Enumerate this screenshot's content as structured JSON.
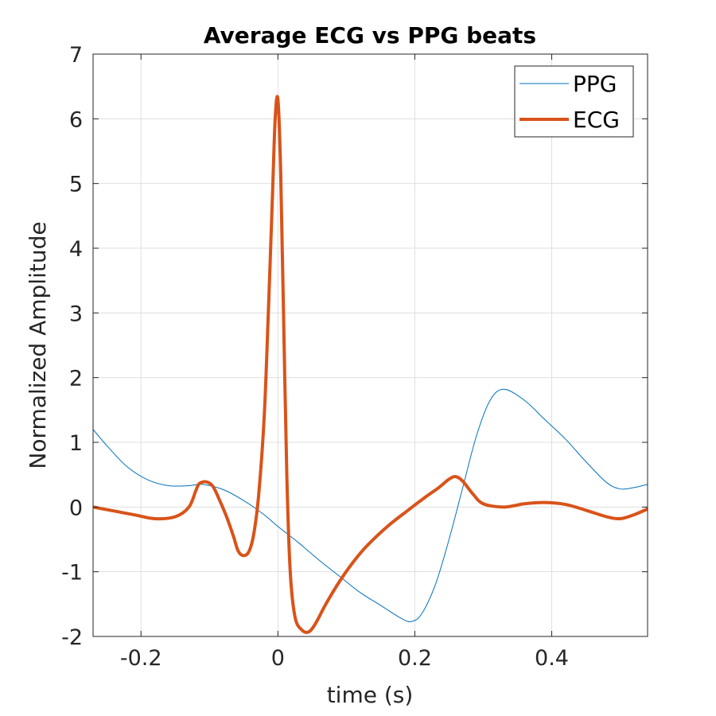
{
  "chart_data": {
    "type": "line",
    "title": "Average ECG vs PPG beats",
    "xlabel": "time (s)",
    "ylabel": "Normalized Amplitude",
    "xlim": [
      -0.27,
      0.54
    ],
    "ylim": [
      -2,
      7
    ],
    "xticks": [
      -0.2,
      0,
      0.2,
      0.4
    ],
    "xtick_labels": [
      "-0.2",
      "0",
      "0.2",
      "0.4"
    ],
    "yticks": [
      -2,
      -1,
      0,
      1,
      2,
      3,
      4,
      5,
      6,
      7
    ],
    "ytick_labels": [
      "-2",
      "-1",
      "0",
      "1",
      "2",
      "3",
      "4",
      "5",
      "6",
      "7"
    ],
    "grid": true,
    "legend_position": "top-right",
    "series": [
      {
        "name": "PPG",
        "color": "#0072BD",
        "line_width": "thin",
        "x": [
          -0.27,
          -0.25,
          -0.22,
          -0.19,
          -0.16,
          -0.13,
          -0.11,
          -0.08,
          -0.05,
          -0.02,
          0.0,
          0.03,
          0.06,
          0.09,
          0.12,
          0.15,
          0.18,
          0.195,
          0.21,
          0.23,
          0.25,
          0.27,
          0.29,
          0.31,
          0.33,
          0.36,
          0.39,
          0.42,
          0.45,
          0.48,
          0.5,
          0.52,
          0.54
        ],
        "y": [
          1.2,
          0.95,
          0.62,
          0.42,
          0.33,
          0.33,
          0.35,
          0.27,
          0.1,
          -0.12,
          -0.3,
          -0.55,
          -0.82,
          -1.07,
          -1.32,
          -1.52,
          -1.72,
          -1.77,
          -1.65,
          -1.2,
          -0.5,
          0.3,
          1.1,
          1.65,
          1.82,
          1.65,
          1.35,
          1.05,
          0.7,
          0.38,
          0.28,
          0.3,
          0.35
        ]
      },
      {
        "name": "ECG",
        "color": "#D95319",
        "line_width": "thick",
        "x": [
          -0.27,
          -0.24,
          -0.21,
          -0.18,
          -0.15,
          -0.13,
          -0.12,
          -0.115,
          -0.105,
          -0.095,
          -0.085,
          -0.075,
          -0.065,
          -0.058,
          -0.05,
          -0.042,
          -0.035,
          -0.028,
          -0.02,
          -0.014,
          -0.008,
          -0.004,
          0.0,
          0.004,
          0.008,
          0.013,
          0.018,
          0.025,
          0.035,
          0.045,
          0.055,
          0.07,
          0.09,
          0.11,
          0.13,
          0.16,
          0.19,
          0.215,
          0.235,
          0.25,
          0.26,
          0.27,
          0.285,
          0.3,
          0.33,
          0.36,
          0.39,
          0.42,
          0.45,
          0.48,
          0.5,
          0.52,
          0.54
        ],
        "y": [
          0.0,
          -0.06,
          -0.12,
          -0.18,
          -0.15,
          0.0,
          0.25,
          0.36,
          0.39,
          0.32,
          0.1,
          -0.15,
          -0.45,
          -0.68,
          -0.75,
          -0.68,
          -0.4,
          0.2,
          1.4,
          3.0,
          4.8,
          6.0,
          6.3,
          5.2,
          3.1,
          0.5,
          -1.0,
          -1.7,
          -1.9,
          -1.93,
          -1.8,
          -1.5,
          -1.15,
          -0.85,
          -0.6,
          -0.3,
          -0.05,
          0.15,
          0.3,
          0.43,
          0.47,
          0.4,
          0.2,
          0.05,
          0.0,
          0.05,
          0.07,
          0.04,
          -0.05,
          -0.15,
          -0.18,
          -0.12,
          -0.03
        ]
      }
    ]
  }
}
